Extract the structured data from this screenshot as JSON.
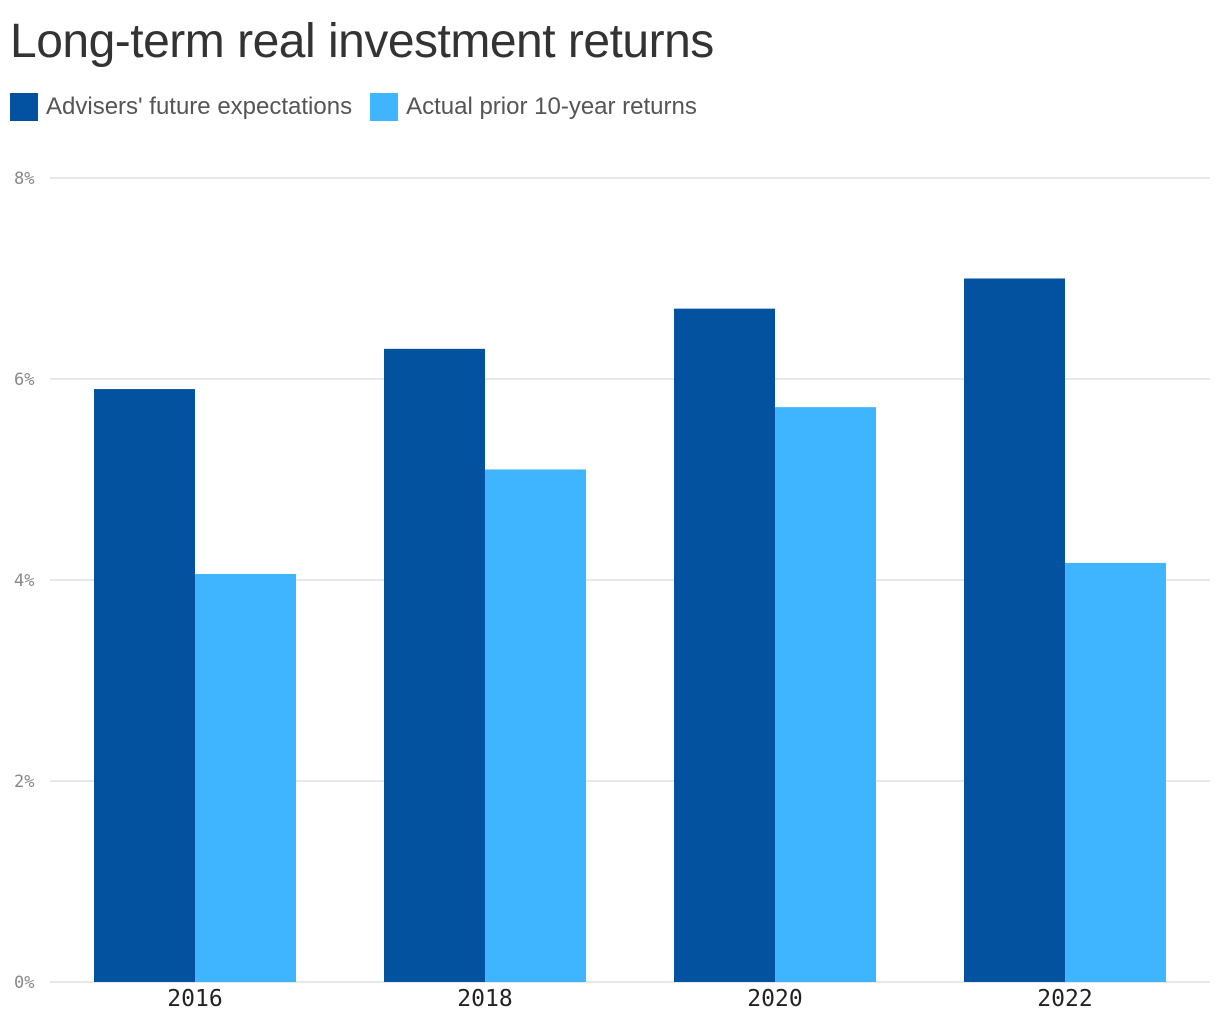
{
  "title": "Long-term real investment returns",
  "legend": [
    {
      "label": "Advisers' future expectations",
      "color": "#02529f"
    },
    {
      "label": "Actual prior 10-year returns",
      "color": "#3fb5ff"
    }
  ],
  "chart_data": {
    "type": "bar",
    "categories": [
      "2016",
      "2018",
      "2020",
      "2022"
    ],
    "series": [
      {
        "name": "Advisers' future expectations",
        "color": "#02529f",
        "values": [
          5.9,
          6.3,
          6.7,
          7.0
        ]
      },
      {
        "name": "Actual prior 10-year returns",
        "color": "#3fb5ff",
        "values": [
          4.06,
          5.1,
          5.72,
          4.17
        ]
      }
    ],
    "y_ticks": [
      {
        "value": 0,
        "label": "0%"
      },
      {
        "value": 2,
        "label": "2%"
      },
      {
        "value": 4,
        "label": "4%"
      },
      {
        "value": 6,
        "label": "6%"
      },
      {
        "value": 8,
        "label": "8%"
      }
    ],
    "ylim": [
      0,
      8
    ],
    "grid": true,
    "legend_position": "top-left"
  }
}
